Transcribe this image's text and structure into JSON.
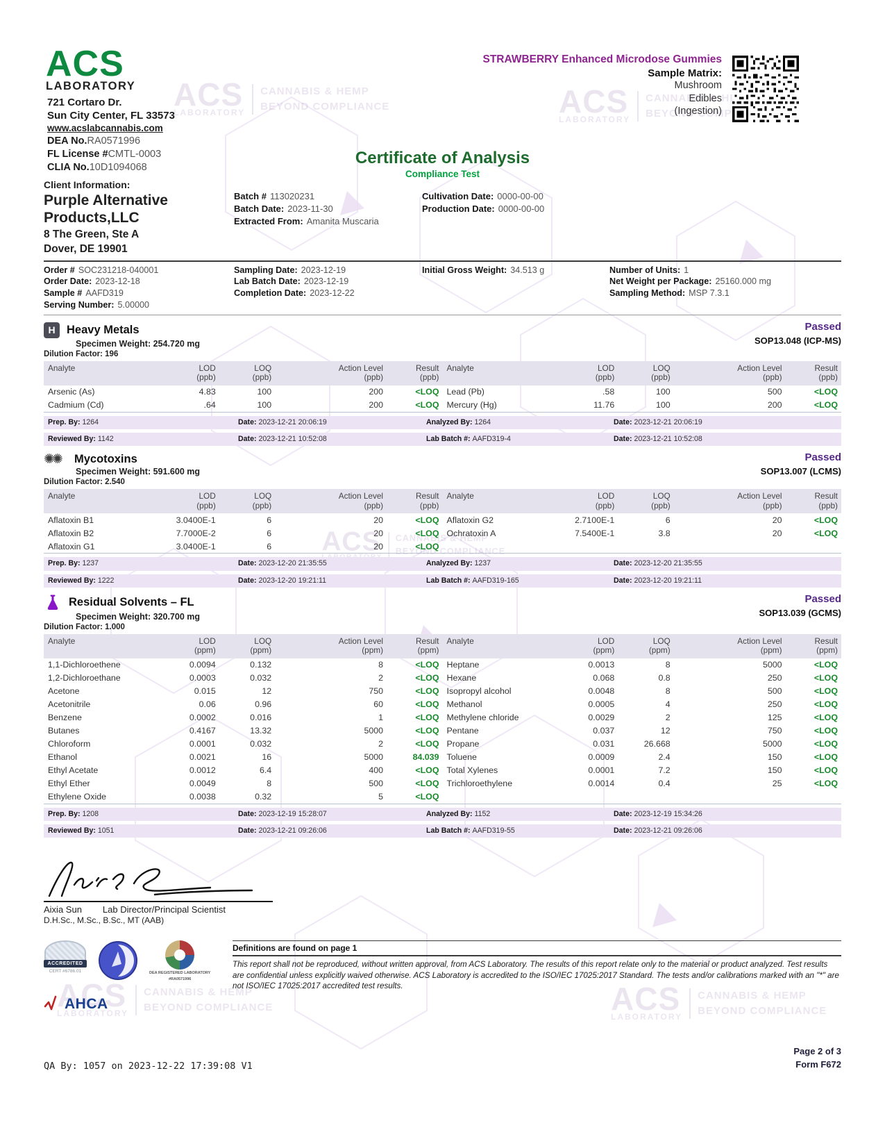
{
  "watermark": {
    "acs": "ACS",
    "laboratory": "LABORATORY",
    "line1": "CANNABIS & HEMP",
    "line2": "BEYOND COMPLIANCE"
  },
  "header": {
    "logo_acs": "ACS",
    "logo_laboratory": "LABORATORY",
    "address_line1": "721 Cortaro Dr.",
    "address_line2": "Sun City Center, FL 33573",
    "website": "www.acslabcannabis.com",
    "ids": [
      {
        "l": "DEA No.",
        "v": "RA0571996"
      },
      {
        "l": "FL License #",
        "v": "CMTL-0003"
      },
      {
        "l": "CLIA No.",
        "v": "10D1094068"
      }
    ],
    "product_name": "STRAWBERRY Enhanced Microdose Gummies",
    "sample_matrix_label": "Sample Matrix:",
    "sample_matrix_lines": [
      "Mushroom",
      "Edibles",
      "(Ingestion)"
    ]
  },
  "title": {
    "main": "Certificate of Analysis",
    "sub": "Compliance Test"
  },
  "client": {
    "label": "Client Information:",
    "name": "Purple Alternative Products,LLC",
    "address_line1": "8 The Green, Ste A",
    "address_line2": "Dover, DE 19901",
    "batch": [
      {
        "l": "Batch #",
        "v": "113020231"
      },
      {
        "l": "Batch Date:",
        "v": "2023-11-30"
      },
      {
        "l": "Extracted From:",
        "v": "Amanita Muscaria"
      }
    ],
    "dates": [
      {
        "l": "Cultivation Date:",
        "v": "0000-00-00"
      },
      {
        "l": "Production Date:",
        "v": "0000-00-00"
      }
    ]
  },
  "order": {
    "col1": [
      {
        "l": "Order #",
        "v": "SOC231218-040001"
      },
      {
        "l": "Order Date:",
        "v": "2023-12-18"
      },
      {
        "l": "Sample #",
        "v": "AAFD319"
      },
      {
        "l": "Serving Number:",
        "v": "5.00000"
      }
    ],
    "col2": [
      {
        "l": "Sampling Date:",
        "v": "2023-12-19"
      },
      {
        "l": "Lab Batch Date:",
        "v": "2023-12-19"
      },
      {
        "l": "Completion Date:",
        "v": "2023-12-22"
      }
    ],
    "col3": [
      {
        "l": "Initial Gross Weight:",
        "v": "34.513 g"
      }
    ],
    "col4": [
      {
        "l": "Number of Units:",
        "v": "1"
      },
      {
        "l": "Net Weight per Package:",
        "v": "25160.000 mg"
      },
      {
        "l": "Sampling Method:",
        "v": "MSP 7.3.1"
      }
    ]
  },
  "sections": [
    {
      "icon_glyph": "H",
      "name": "Heavy Metals",
      "status": "Passed",
      "specimen": "Specimen Weight: 254.720 mg",
      "sop": "SOP13.048 (ICP-MS)",
      "dilution": "Dilution Factor: 196",
      "cols": [
        {
          "t": "Analyte",
          "u": ""
        },
        {
          "t": "LOD",
          "u": "(ppb)"
        },
        {
          "t": "LOQ",
          "u": "(ppb)"
        },
        {
          "t": "Action Level",
          "u": "(ppb)"
        },
        {
          "t": "Result",
          "u": "(ppb)"
        }
      ],
      "left_rows": [
        [
          "Arsenic (As)",
          "4.83",
          "100",
          "200",
          "<LOQ"
        ],
        [
          "Cadmium (Cd)",
          ".64",
          "100",
          "200",
          "<LOQ"
        ]
      ],
      "right_rows": [
        [
          "Lead (Pb)",
          ".58",
          "100",
          "500",
          "<LOQ"
        ],
        [
          "Mercury (Hg)",
          "11.76",
          "100",
          "200",
          "<LOQ"
        ]
      ],
      "bar1": [
        {
          "l": "Prep. By:",
          "v": "1264"
        },
        {
          "l": "Date:",
          "v": "2023-12-21 20:06:19"
        },
        {
          "l": "Analyzed By:",
          "v": "1264"
        },
        {
          "l": "Date:",
          "v": "2023-12-21 20:06:19"
        }
      ],
      "bar2": [
        {
          "l": "Reviewed By:",
          "v": "1142"
        },
        {
          "l": "Date:",
          "v": "2023-12-21 10:52:08"
        },
        {
          "l": "Lab Batch #:",
          "v": "AAFD319-4"
        },
        {
          "l": "Date:",
          "v": "2023-12-21 10:52:08"
        }
      ]
    },
    {
      "icon_glyph": "✺✺",
      "name": "Mycotoxins",
      "status": "Passed",
      "specimen": "Specimen Weight: 591.600 mg",
      "sop": "SOP13.007 (LCMS)",
      "dilution": "Dilution Factor: 2.540",
      "cols": [
        {
          "t": "Analyte",
          "u": ""
        },
        {
          "t": "LOD",
          "u": "(ppb)"
        },
        {
          "t": "LOQ",
          "u": "(ppb)"
        },
        {
          "t": "Action Level",
          "u": "(ppb)"
        },
        {
          "t": "Result",
          "u": "(ppb)"
        }
      ],
      "left_rows": [
        [
          "Aflatoxin B1",
          "3.0400E-1",
          "6",
          "20",
          "<LOQ"
        ],
        [
          "Aflatoxin B2",
          "7.7000E-2",
          "6",
          "20",
          "<LOQ"
        ],
        [
          "Aflatoxin G1",
          "3.0400E-1",
          "6",
          "20",
          "<LOQ"
        ]
      ],
      "right_rows": [
        [
          "Aflatoxin G2",
          "2.7100E-1",
          "6",
          "20",
          "<LOQ"
        ],
        [
          "Ochratoxin A",
          "7.5400E-1",
          "3.8",
          "20",
          "<LOQ"
        ]
      ],
      "bar1": [
        {
          "l": "Prep. By:",
          "v": "1237"
        },
        {
          "l": "Date:",
          "v": "2023-12-20 21:35:55"
        },
        {
          "l": "Analyzed By:",
          "v": "1237"
        },
        {
          "l": "Date:",
          "v": "2023-12-20 21:35:55"
        }
      ],
      "bar2": [
        {
          "l": "Reviewed By:",
          "v": "1222"
        },
        {
          "l": "Date:",
          "v": "2023-12-20 19:21:11"
        },
        {
          "l": "Lab Batch #:",
          "v": "AAFD319-165"
        },
        {
          "l": "Date:",
          "v": "2023-12-20 19:21:11"
        }
      ]
    },
    {
      "icon_glyph": "",
      "name": "Residual Solvents – FL",
      "status": "Passed",
      "specimen": "Specimen Weight: 320.700 mg",
      "sop": "SOP13.039 (GCMS)",
      "dilution": "Dilution Factor: 1.000",
      "cols": [
        {
          "t": "Analyte",
          "u": ""
        },
        {
          "t": "LOD",
          "u": "(ppm)"
        },
        {
          "t": "LOQ",
          "u": "(ppm)"
        },
        {
          "t": "Action Level",
          "u": "(ppm)"
        },
        {
          "t": "Result",
          "u": "(ppm)"
        }
      ],
      "left_rows": [
        [
          "1,1-Dichloroethene",
          "0.0094",
          "0.132",
          "8",
          "<LOQ"
        ],
        [
          "1,2-Dichloroethane",
          "0.0003",
          "0.032",
          "2",
          "<LOQ"
        ],
        [
          "Acetone",
          "0.015",
          "12",
          "750",
          "<LOQ"
        ],
        [
          "Acetonitrile",
          "0.06",
          "0.96",
          "60",
          "<LOQ"
        ],
        [
          "Benzene",
          "0.0002",
          "0.016",
          "1",
          "<LOQ"
        ],
        [
          "Butanes",
          "0.4167",
          "13.32",
          "5000",
          "<LOQ"
        ],
        [
          "Chloroform",
          "0.0001",
          "0.032",
          "2",
          "<LOQ"
        ],
        [
          "Ethanol",
          "0.0021",
          "16",
          "5000",
          "84.039"
        ],
        [
          "Ethyl Acetate",
          "0.0012",
          "6.4",
          "400",
          "<LOQ"
        ],
        [
          "Ethyl Ether",
          "0.0049",
          "8",
          "500",
          "<LOQ"
        ],
        [
          "Ethylene Oxide",
          "0.0038",
          "0.32",
          "5",
          "<LOQ"
        ]
      ],
      "right_rows": [
        [
          "Heptane",
          "0.0013",
          "8",
          "5000",
          "<LOQ"
        ],
        [
          "Hexane",
          "0.068",
          "0.8",
          "250",
          "<LOQ"
        ],
        [
          "Isopropyl alcohol",
          "0.0048",
          "8",
          "500",
          "<LOQ"
        ],
        [
          "Methanol",
          "0.0005",
          "4",
          "250",
          "<LOQ"
        ],
        [
          "Methylene chloride",
          "0.0029",
          "2",
          "125",
          "<LOQ"
        ],
        [
          "Pentane",
          "0.037",
          "12",
          "750",
          "<LOQ"
        ],
        [
          "Propane",
          "0.031",
          "26.668",
          "5000",
          "<LOQ"
        ],
        [
          "Toluene",
          "0.0009",
          "2.4",
          "150",
          "<LOQ"
        ],
        [
          "Total Xylenes",
          "0.0001",
          "7.2",
          "150",
          "<LOQ"
        ],
        [
          "Trichloroethylene",
          "0.0014",
          "0.4",
          "25",
          "<LOQ"
        ]
      ],
      "bar1": [
        {
          "l": "Prep. By:",
          "v": "1208"
        },
        {
          "l": "Date:",
          "v": "2023-12-19 15:28:07"
        },
        {
          "l": "Analyzed By:",
          "v": "1152"
        },
        {
          "l": "Date:",
          "v": "2023-12-19 15:34:26"
        }
      ],
      "bar2": [
        {
          "l": "Reviewed By:",
          "v": "1051"
        },
        {
          "l": "Date:",
          "v": "2023-12-21 09:26:06"
        },
        {
          "l": "Lab Batch #:",
          "v": "AAFD319-55"
        },
        {
          "l": "Date:",
          "v": "2023-12-21 09:26:06"
        }
      ]
    }
  ],
  "signature": {
    "name": "Aixia Sun",
    "title": "Lab Director/Principal Scientist",
    "credentials": "D.H.Sc., M.Sc., B.Sc., MT (AAB)"
  },
  "footer": {
    "badge_accredited": "ACCREDITED",
    "badge_cert": "CERT #6786.01",
    "badge_dea_line1": "DEA REGISTERED LABORATORY",
    "badge_dea_line2": "#RA0571996",
    "badge_ahca": "AHCA",
    "definitions": "Definitions are found on page 1",
    "disclaimer": "This report shall not be reproduced, without written approval, from ACS Laboratory. The results of this report relate only to the material or product analyzed. Test results are confidential unless explicitly waived otherwise. ACS Laboratory is accredited to the ISO/IEC 17025:2017 Standard. The tests and/or calibrations marked with an \"*\" are not ISO/IEC 17025:2017 accredited test results.",
    "qa_line": "QA By: 1057 on 2023-12-22 17:39:08 V1",
    "page": "Page 2 of 3",
    "form": "Form F672"
  }
}
